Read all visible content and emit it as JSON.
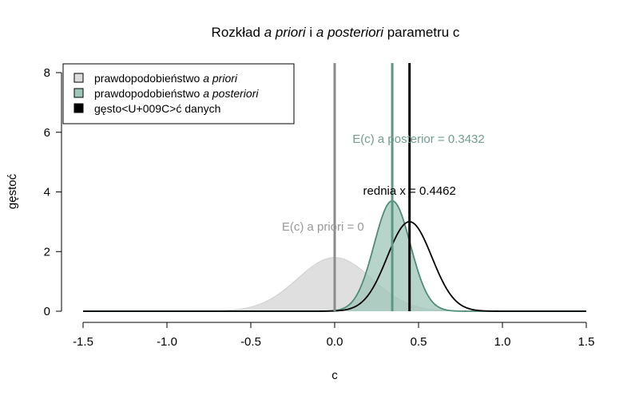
{
  "chart_data": {
    "type": "area",
    "title": {
      "part1": "Rozkład ",
      "part2_italic": "a priori",
      "part3": " i ",
      "part4_italic": "a posteriori",
      "part5": " parametru c"
    },
    "xlabel": "c",
    "ylabel": "gęstoć",
    "xlim": [
      -1.5,
      1.5
    ],
    "ylim": [
      0,
      8
    ],
    "x_ticks": [
      "-1.5",
      "-1.0",
      "-0.5",
      "0.0",
      "0.5",
      "1.0",
      "1.5"
    ],
    "y_ticks": [
      "0",
      "2",
      "4",
      "6",
      "8"
    ],
    "legend": {
      "placement": "top-left",
      "items": [
        {
          "text": "prawdopodobieństwo ",
          "italic": "a priori",
          "color": "#dcdcdc"
        },
        {
          "text": "prawdopodobieństwo ",
          "italic": "a posteriori",
          "color": "#9fc6b8"
        },
        {
          "text": "gęsto<U+009C>ć danych",
          "italic": "",
          "color": "#000000"
        }
      ]
    },
    "series": [
      {
        "name": "prawdopodobieństwo a priori",
        "distribution": "normal",
        "mean": 0.0,
        "peak_density": 1.8,
        "fill": "#d9d9d9",
        "stroke": "#cfcfcf"
      },
      {
        "name": "prawdopodobieństwo a posteriori",
        "distribution": "normal",
        "mean": 0.3432,
        "peak_density": 3.7,
        "fill": "#9fc6b8",
        "stroke": "#4f8c78"
      },
      {
        "name": "gęsto<U+009C>ć danych",
        "distribution": "normal",
        "mean": 0.4462,
        "peak_density": 3.0,
        "fill": "none",
        "stroke": "#000000"
      }
    ],
    "vlines": [
      {
        "x": 0.0,
        "color": "#8c8c8c"
      },
      {
        "x": 0.3432,
        "color": "#5e9685"
      },
      {
        "x": 0.4462,
        "color": "#000000"
      }
    ],
    "annotations": [
      {
        "text": "E(c) a posterior  = 0.3432",
        "x": 0.5,
        "y": 5.65,
        "color": "#6f9e8e"
      },
      {
        "text": "rednia x =  0.4462",
        "x": 0.4462,
        "y": 3.9,
        "color": "#000000"
      },
      {
        "text": "E(c) a priori = 0",
        "x": -0.07,
        "y": 2.7,
        "color": "#999999"
      }
    ]
  }
}
